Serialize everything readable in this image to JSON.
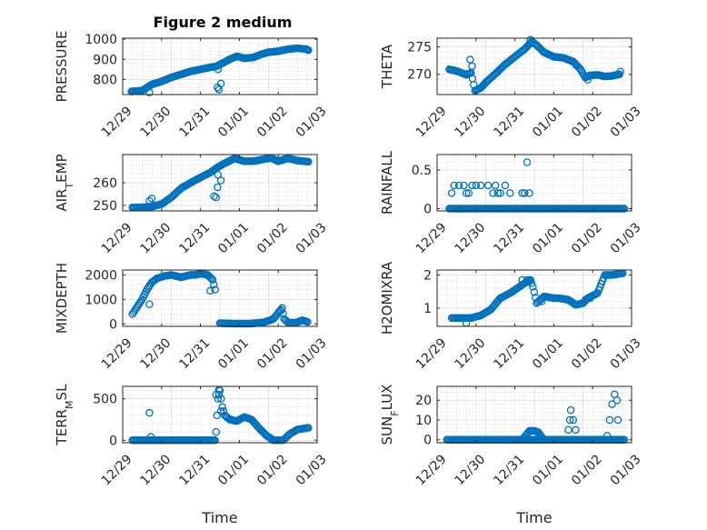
{
  "figure": {
    "title": "Figure 2 medium"
  },
  "x_tick_labels": [
    "12/29",
    "12/30",
    "12/31",
    "01/01",
    "01/02",
    "01/03"
  ],
  "chart_data": [
    {
      "type": "scatter",
      "id": "pressure",
      "ylabel": "PRESSURE",
      "xlabel": "",
      "xlim": [
        0,
        4
      ],
      "ylim": [
        725,
        1005
      ],
      "yticks": [
        800,
        900,
        1000
      ],
      "ytick_labels": [
        "800",
        "900",
        "1000"
      ],
      "grid": true,
      "marker_color": "#0072BD",
      "curve": [
        [
          0.18,
          740
        ],
        [
          0.4,
          745
        ],
        [
          0.6,
          775
        ],
        [
          0.8,
          790
        ],
        [
          1.0,
          810
        ],
        [
          1.2,
          825
        ],
        [
          1.4,
          840
        ],
        [
          1.6,
          850
        ],
        [
          1.8,
          860
        ],
        [
          1.92,
          865
        ],
        [
          2.05,
          880
        ],
        [
          2.2,
          900
        ],
        [
          2.35,
          915
        ],
        [
          2.5,
          905
        ],
        [
          2.7,
          910
        ],
        [
          2.85,
          925
        ],
        [
          3.0,
          935
        ],
        [
          3.2,
          940
        ],
        [
          3.4,
          950
        ],
        [
          3.6,
          955
        ],
        [
          3.78,
          950
        ],
        [
          3.82,
          945
        ]
      ],
      "extra": [
        [
          0.55,
          735
        ],
        [
          1.95,
          760
        ],
        [
          1.98,
          750
        ],
        [
          2.02,
          780
        ],
        [
          1.96,
          850
        ]
      ]
    },
    {
      "type": "scatter",
      "id": "theta",
      "ylabel": "THETA",
      "xlabel": "",
      "xlim": [
        0,
        4
      ],
      "ylim": [
        266.3,
        276.6
      ],
      "yticks": [
        270,
        275
      ],
      "ytick_labels": [
        "270",
        "275"
      ],
      "grid": true,
      "marker_color": "#0072BD",
      "curve": [
        [
          0.25,
          270.9
        ],
        [
          0.4,
          270.6
        ],
        [
          0.55,
          270.1
        ],
        [
          0.6,
          269.9
        ],
        [
          0.7,
          270.3
        ],
        [
          0.78,
          267.0
        ],
        [
          0.9,
          267.5
        ],
        [
          1.0,
          268.5
        ],
        [
          1.2,
          270.1
        ],
        [
          1.4,
          271.8
        ],
        [
          1.6,
          273.2
        ],
        [
          1.8,
          274.6
        ],
        [
          1.95,
          276.0
        ],
        [
          2.05,
          275.3
        ],
        [
          2.2,
          274.0
        ],
        [
          2.4,
          273.2
        ],
        [
          2.6,
          273.0
        ],
        [
          2.8,
          272.3
        ],
        [
          2.95,
          270.9
        ],
        [
          3.05,
          269.4
        ],
        [
          3.15,
          269.8
        ],
        [
          3.3,
          269.9
        ],
        [
          3.45,
          269.6
        ],
        [
          3.6,
          269.7
        ],
        [
          3.75,
          270.0
        ]
      ],
      "extra": [
        [
          0.68,
          272.7
        ],
        [
          0.72,
          271.5
        ],
        [
          3.1,
          269.0
        ],
        [
          3.77,
          270.5
        ],
        [
          1.92,
          276.3
        ]
      ]
    },
    {
      "type": "scatter",
      "id": "air_temp",
      "ylabel": "AIR_TEMP",
      "xlabel": "",
      "xlim": [
        0,
        4
      ],
      "ylim": [
        247.5,
        272.5
      ],
      "yticks": [
        250,
        260
      ],
      "ytick_labels": [
        "250",
        "260"
      ],
      "grid": true,
      "marker_color": "#0072BD",
      "curve": [
        [
          0.2,
          249.0
        ],
        [
          0.4,
          249.1
        ],
        [
          0.6,
          249.4
        ],
        [
          0.8,
          250.5
        ],
        [
          1.0,
          253.5
        ],
        [
          1.2,
          257.5
        ],
        [
          1.4,
          260.0
        ],
        [
          1.6,
          262.3
        ],
        [
          1.8,
          264.5
        ],
        [
          1.95,
          266.8
        ],
        [
          2.1,
          268.6
        ],
        [
          2.3,
          270.8
        ],
        [
          2.5,
          269.5
        ],
        [
          2.7,
          269.6
        ],
        [
          2.9,
          270.4
        ],
        [
          3.05,
          271.0
        ],
        [
          3.2,
          269.5
        ],
        [
          3.4,
          270.8
        ],
        [
          3.6,
          269.8
        ],
        [
          3.82,
          269.3
        ]
      ],
      "extra": [
        [
          0.55,
          252.0
        ],
        [
          0.6,
          253.0
        ],
        [
          1.88,
          254.0
        ],
        [
          1.92,
          253.5
        ],
        [
          1.95,
          258.0
        ],
        [
          2.02,
          261.0
        ],
        [
          1.96,
          263.5
        ]
      ]
    },
    {
      "type": "scatter",
      "id": "rainfall",
      "ylabel": "RAINFALL",
      "xlabel": "",
      "xlim": [
        0,
        4
      ],
      "ylim": [
        -0.03,
        0.7
      ],
      "yticks": [
        0,
        0.5
      ],
      "ytick_labels": [
        "0",
        "0.5"
      ],
      "grid": true,
      "marker_color": "#0072BD",
      "baseline_x": [
        0.25,
        3.85
      ],
      "points": [
        [
          0.3,
          0.2
        ],
        [
          0.35,
          0.3
        ],
        [
          0.45,
          0.3
        ],
        [
          0.55,
          0.3
        ],
        [
          0.6,
          0.2
        ],
        [
          0.65,
          0.2
        ],
        [
          0.72,
          0.3
        ],
        [
          0.8,
          0.3
        ],
        [
          0.9,
          0.3
        ],
        [
          1.05,
          0.3
        ],
        [
          1.15,
          0.2
        ],
        [
          1.2,
          0.3
        ],
        [
          1.25,
          0.2
        ],
        [
          1.3,
          0.2
        ],
        [
          1.4,
          0.3
        ],
        [
          1.5,
          0.2
        ],
        [
          1.75,
          0.2
        ],
        [
          1.8,
          0.2
        ],
        [
          1.85,
          0.6
        ],
        [
          1.9,
          0.2
        ]
      ]
    },
    {
      "type": "scatter",
      "id": "mixdepth",
      "ylabel": "MIXDEPTH",
      "xlabel": "",
      "xlim": [
        0,
        4
      ],
      "ylim": [
        -100,
        2200
      ],
      "yticks": [
        0,
        1000,
        2000
      ],
      "ytick_labels": [
        "0",
        "1000",
        "2000"
      ],
      "grid": true,
      "marker_color": "#0072BD",
      "curve": [
        [
          0.2,
          400
        ],
        [
          0.3,
          700
        ],
        [
          0.4,
          1000
        ],
        [
          0.5,
          1400
        ],
        [
          0.6,
          1700
        ],
        [
          0.7,
          1850
        ],
        [
          0.85,
          1950
        ],
        [
          1.0,
          2000
        ],
        [
          1.2,
          1900
        ],
        [
          1.4,
          2000
        ],
        [
          1.5,
          2000
        ],
        [
          1.6,
          2050
        ],
        [
          1.75,
          2000
        ],
        [
          1.85,
          1800
        ],
        [
          1.9,
          1400
        ]
      ],
      "curve2": [
        [
          2.0,
          30
        ],
        [
          2.3,
          10
        ],
        [
          2.6,
          10
        ],
        [
          2.9,
          60
        ],
        [
          3.1,
          200
        ],
        [
          3.2,
          450
        ],
        [
          3.28,
          650
        ],
        [
          3.32,
          200
        ],
        [
          3.4,
          60
        ],
        [
          3.55,
          40
        ],
        [
          3.7,
          150
        ],
        [
          3.8,
          80
        ]
      ],
      "extra": [
        [
          0.55,
          800
        ],
        [
          1.8,
          1350
        ],
        [
          3.22,
          500
        ],
        [
          3.26,
          550
        ]
      ]
    },
    {
      "type": "scatter",
      "id": "h2omixra",
      "ylabel": "H2OMIXRA",
      "xlabel": "",
      "xlim": [
        0,
        4
      ],
      "ylim": [
        0.45,
        2.15
      ],
      "yticks": [
        1,
        2
      ],
      "ytick_labels": [
        "1",
        "2"
      ],
      "grid": true,
      "marker_color": "#0072BD",
      "curve": [
        [
          0.3,
          0.7
        ],
        [
          0.55,
          0.7
        ],
        [
          0.7,
          0.7
        ],
        [
          0.9,
          0.78
        ],
        [
          1.1,
          0.95
        ],
        [
          1.3,
          1.3
        ],
        [
          1.5,
          1.45
        ],
        [
          1.65,
          1.6
        ],
        [
          1.8,
          1.75
        ],
        [
          1.92,
          1.85
        ],
        [
          1.97,
          1.65
        ],
        [
          2.05,
          1.15
        ],
        [
          2.2,
          1.35
        ],
        [
          2.4,
          1.3
        ],
        [
          2.5,
          1.3
        ],
        [
          2.7,
          1.25
        ],
        [
          2.85,
          1.1
        ],
        [
          3.0,
          1.15
        ],
        [
          3.1,
          1.3
        ],
        [
          3.3,
          1.45
        ],
        [
          3.45,
          2.0
        ],
        [
          3.6,
          2.0
        ],
        [
          3.82,
          2.05
        ]
      ],
      "extra": [
        [
          0.6,
          0.55
        ],
        [
          1.75,
          1.85
        ],
        [
          1.85,
          1.85
        ],
        [
          2.15,
          1.2
        ],
        [
          3.05,
          1.25
        ],
        [
          3.15,
          1.3
        ]
      ]
    },
    {
      "type": "scatter",
      "id": "terr_msl",
      "ylabel": "TERR_MSL",
      "xlabel": "Time",
      "xlim": [
        0,
        4
      ],
      "ylim": [
        -30,
        650
      ],
      "yticks": [
        0,
        500
      ],
      "ytick_labels": [
        "0",
        "500"
      ],
      "grid": true,
      "marker_color": "#0072BD",
      "curve": [
        [
          0.2,
          0
        ],
        [
          1.9,
          0
        ],
        [
          1.92,
          100
        ],
        [
          1.96,
          500
        ],
        [
          2.0,
          600
        ],
        [
          2.05,
          400
        ],
        [
          2.1,
          300
        ],
        [
          2.2,
          250
        ],
        [
          2.35,
          230
        ],
        [
          2.5,
          280
        ],
        [
          2.65,
          250
        ],
        [
          2.8,
          150
        ],
        [
          2.95,
          60
        ],
        [
          3.1,
          0
        ],
        [
          3.3,
          0
        ],
        [
          3.45,
          80
        ],
        [
          3.6,
          130
        ],
        [
          3.82,
          150
        ]
      ],
      "extra": [
        [
          0.55,
          330
        ],
        [
          0.58,
          40
        ],
        [
          1.92,
          550
        ],
        [
          1.98,
          610
        ],
        [
          2.02,
          350
        ]
      ]
    },
    {
      "type": "scatter",
      "id": "sun_flux",
      "ylabel": "SUN_FLUX",
      "xlabel": "Time",
      "xlim": [
        0,
        4
      ],
      "ylim": [
        -1.5,
        27
      ],
      "yticks": [
        0,
        10,
        20
      ],
      "ytick_labels": [
        "0",
        "10",
        "20"
      ],
      "grid": true,
      "marker_color": "#0072BD",
      "baseline_x": [
        0.2,
        3.85
      ],
      "curve": [
        [
          1.5,
          0
        ],
        [
          1.75,
          0
        ],
        [
          1.85,
          3.0
        ],
        [
          1.9,
          4.5
        ],
        [
          2.0,
          4.5
        ],
        [
          2.08,
          3.8
        ],
        [
          2.15,
          1.5
        ],
        [
          2.2,
          0
        ]
      ],
      "extra": [
        [
          2.7,
          5
        ],
        [
          2.73,
          10
        ],
        [
          2.75,
          15
        ],
        [
          2.8,
          10
        ],
        [
          2.85,
          5
        ],
        [
          3.5,
          2
        ],
        [
          3.55,
          10
        ],
        [
          3.6,
          18
        ],
        [
          3.65,
          23
        ],
        [
          3.7,
          20
        ],
        [
          3.72,
          10
        ],
        [
          3.76,
          0
        ]
      ]
    }
  ]
}
